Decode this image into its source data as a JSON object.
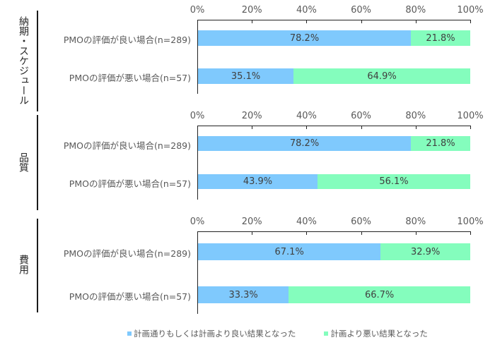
{
  "chart_data": {
    "type": "bar",
    "orientation": "horizontal",
    "stacked": true,
    "percent": true,
    "xlim": [
      0,
      100
    ],
    "xticks": [
      "0%",
      "20%",
      "40%",
      "60%",
      "80%",
      "100%"
    ],
    "legend_position": "bottom",
    "series": [
      {
        "name": "計画通りもしくは計画より良い結果となった",
        "color": "#7fc9fd"
      },
      {
        "name": "計画より悪い結果となった",
        "color": "#84fdbd"
      }
    ],
    "panels": [
      {
        "group": "納期・スケジュール",
        "categories": [
          "PMOの評価が良い場合(n=289)",
          "PMOの評価が悪い場合(n=57)"
        ],
        "series": [
          {
            "name": "計画通りもしくは計画より良い結果となった",
            "values": [
              78.2,
              35.1
            ]
          },
          {
            "name": "計画より悪い結果となった",
            "values": [
              21.8,
              64.9
            ]
          }
        ]
      },
      {
        "group": "品質",
        "categories": [
          "PMOの評価が良い場合(n=289)",
          "PMOの評価が悪い場合(n=57)"
        ],
        "series": [
          {
            "name": "計画通りもしくは計画より良い結果となった",
            "values": [
              78.2,
              43.9
            ]
          },
          {
            "name": "計画より悪い結果となった",
            "values": [
              21.8,
              56.1
            ]
          }
        ]
      },
      {
        "group": "費用",
        "categories": [
          "PMOの評価が良い場合(n=289)",
          "PMOの評価が悪い場合(n=57)"
        ],
        "series": [
          {
            "name": "計画通りもしくは計画より良い結果となった",
            "values": [
              67.1,
              33.3
            ]
          },
          {
            "name": "計画より悪い結果となった",
            "values": [
              32.9,
              66.7
            ]
          }
        ]
      }
    ]
  },
  "panels": [
    {
      "group_label": "納期・スケジュール",
      "ticks": [
        "0%",
        "20%",
        "40%",
        "60%",
        "80%",
        "100%"
      ],
      "rows": [
        {
          "label": "PMOの評価が良い場合(n=289)",
          "good": 78.2,
          "bad": 21.8,
          "good_text": "78.2%",
          "bad_text": "21.8%"
        },
        {
          "label": "PMOの評価が悪い場合(n=57)",
          "good": 35.1,
          "bad": 64.9,
          "good_text": "35.1%",
          "bad_text": "64.9%"
        }
      ]
    },
    {
      "group_label": "品質",
      "ticks": [
        "0%",
        "20%",
        "40%",
        "60%",
        "80%",
        "100%"
      ],
      "rows": [
        {
          "label": "PMOの評価が良い場合(n=289)",
          "good": 78.2,
          "bad": 21.8,
          "good_text": "78.2%",
          "bad_text": "21.8%"
        },
        {
          "label": "PMOの評価が悪い場合(n=57)",
          "good": 43.9,
          "bad": 56.1,
          "good_text": "43.9%",
          "bad_text": "56.1%"
        }
      ]
    },
    {
      "group_label": "費用",
      "ticks": [
        "0%",
        "20%",
        "40%",
        "60%",
        "80%",
        "100%"
      ],
      "rows": [
        {
          "label": "PMOの評価が良い場合(n=289)",
          "good": 67.1,
          "bad": 32.9,
          "good_text": "67.1%",
          "bad_text": "32.9%"
        },
        {
          "label": "PMOの評価が悪い場合(n=57)",
          "good": 33.3,
          "bad": 66.7,
          "good_text": "33.3%",
          "bad_text": "66.7%"
        }
      ]
    }
  ],
  "legend": {
    "items": [
      {
        "label": "計画通りもしくは計画より良い結果となった",
        "color": "#7fc9fd"
      },
      {
        "label": "計画より悪い結果となった",
        "color": "#84fdbd"
      }
    ]
  }
}
